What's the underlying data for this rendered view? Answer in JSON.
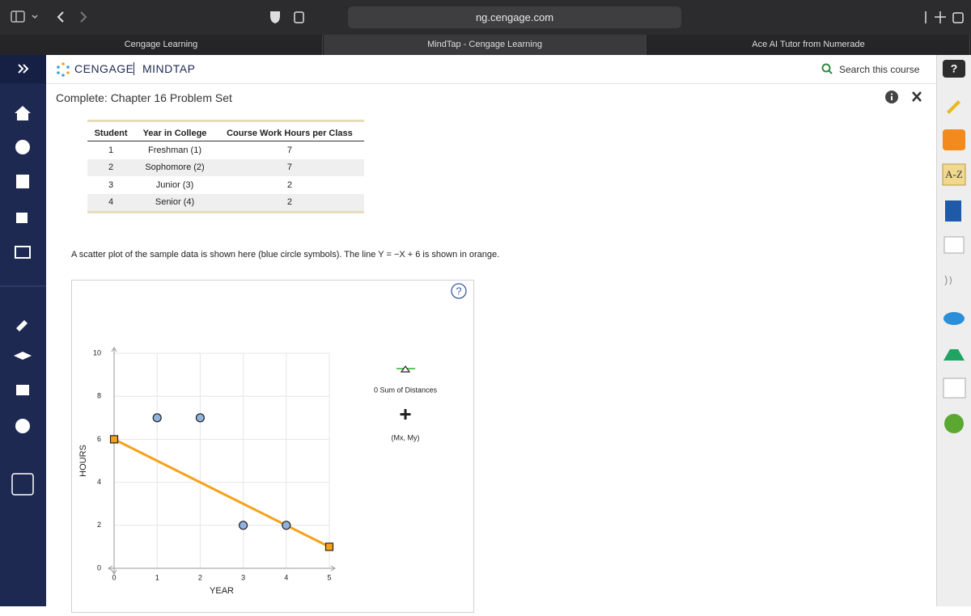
{
  "browser": {
    "url": "ng.cengage.com",
    "tabs": [
      "Cengage Learning",
      "MindTap - Cengage Learning",
      "Ace AI Tutor from Numerade"
    ]
  },
  "header": {
    "brand": "CENGAGE",
    "product": "MINDTAP",
    "search": "Search this course",
    "help": "?"
  },
  "sidebar_right": {
    "az": "A-Z"
  },
  "page": {
    "title": "Complete: Chapter 16 Problem Set",
    "description": "A scatter plot of the sample data is shown here (blue circle symbols). The line Y = −X + 6 is shown in orange."
  },
  "table": {
    "columns": [
      "Student",
      "Year in College",
      "Course Work Hours per Class"
    ],
    "rows": [
      [
        "1",
        "Freshman (1)",
        "7"
      ],
      [
        "2",
        "Sophomore (2)",
        "7"
      ],
      [
        "3",
        "Junior (3)",
        "2"
      ],
      [
        "4",
        "Senior (4)",
        "2"
      ]
    ]
  },
  "chart_data": {
    "type": "scatter",
    "x_label": "YEAR",
    "y_label": "HOURS",
    "xlim": [
      0,
      5
    ],
    "ylim": [
      0,
      10
    ],
    "xticks": [
      0,
      1,
      2,
      3,
      4,
      5
    ],
    "yticks": [
      0,
      2,
      4,
      6,
      8,
      10
    ],
    "grid": true,
    "series": [
      {
        "color": "#8fb3dd",
        "x": [
          1,
          2,
          3,
          4
        ],
        "values": [
          7,
          7,
          2,
          2
        ]
      }
    ],
    "fit_line": {
      "color": "#f7a11a",
      "x": [
        0,
        5
      ],
      "values": [
        6,
        1
      ]
    },
    "sum_label": "0 Sum of Distances",
    "mean_label": "(Mx, My)",
    "help": "?"
  }
}
